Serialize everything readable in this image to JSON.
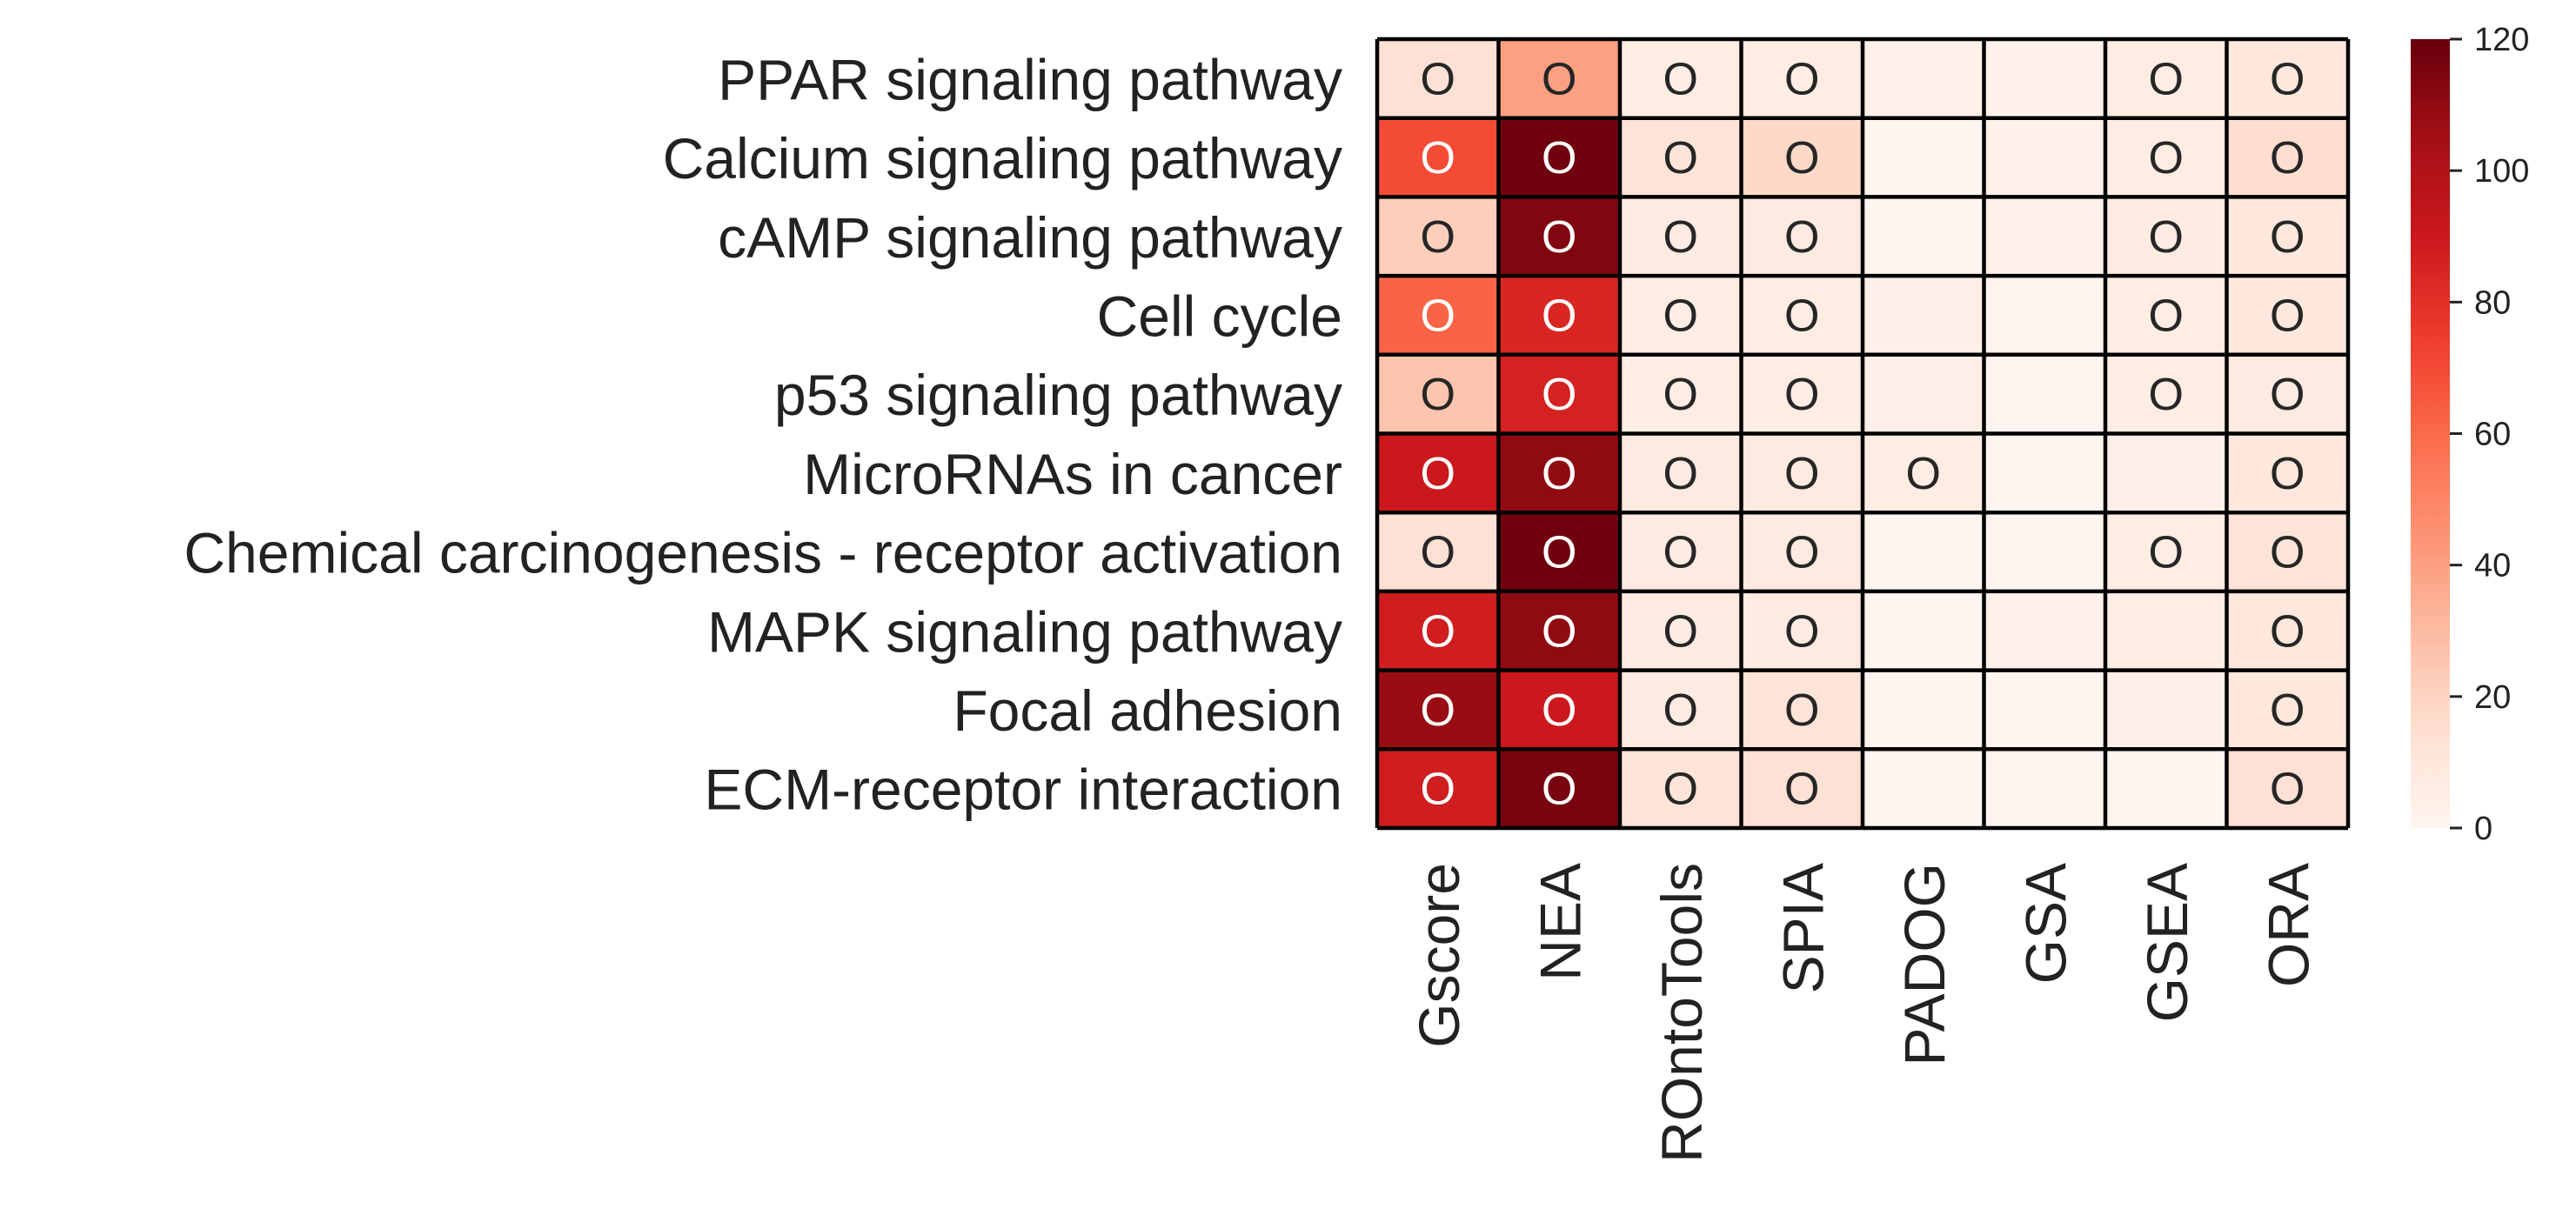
{
  "chart_data": {
    "type": "heatmap",
    "rows": [
      "PPAR signaling pathway",
      "Calcium signaling pathway",
      "cAMP signaling pathway",
      "Cell cycle",
      "p53 signaling pathway",
      "MicroRNAs in cancer",
      "Chemical carcinogenesis - receptor activation",
      "MAPK signaling pathway",
      "Focal adhesion",
      "ECM-receptor interaction"
    ],
    "columns": [
      "Gscore",
      "NEA",
      "ROntoTools",
      "SPIA",
      "PADOG",
      "GSA",
      "GSEA",
      "ORA"
    ],
    "values": [
      [
        14,
        40,
        6,
        6,
        3,
        2,
        6,
        10
      ],
      [
        70,
        118,
        12,
        18,
        0,
        3,
        6,
        16
      ],
      [
        22,
        114,
        7,
        8,
        0,
        3,
        7,
        10
      ],
      [
        62,
        84,
        6,
        6,
        4,
        0,
        6,
        9
      ],
      [
        26,
        86,
        6,
        6,
        4,
        0,
        6,
        8
      ],
      [
        90,
        110,
        8,
        8,
        6,
        0,
        4,
        10
      ],
      [
        14,
        118,
        8,
        8,
        0,
        0,
        6,
        12
      ],
      [
        88,
        110,
        7,
        7,
        0,
        3,
        5,
        10
      ],
      [
        108,
        90,
        8,
        12,
        0,
        0,
        4,
        10
      ],
      [
        88,
        116,
        12,
        14,
        0,
        0,
        0,
        14
      ]
    ],
    "markers": [
      [
        1,
        1,
        1,
        1,
        0,
        0,
        1,
        1
      ],
      [
        1,
        1,
        1,
        1,
        0,
        0,
        1,
        1
      ],
      [
        1,
        1,
        1,
        1,
        0,
        0,
        1,
        1
      ],
      [
        1,
        1,
        1,
        1,
        0,
        0,
        1,
        1
      ],
      [
        1,
        1,
        1,
        1,
        0,
        0,
        1,
        1
      ],
      [
        1,
        1,
        1,
        1,
        1,
        0,
        0,
        1
      ],
      [
        1,
        1,
        1,
        1,
        0,
        0,
        1,
        1
      ],
      [
        1,
        1,
        1,
        1,
        0,
        0,
        0,
        1
      ],
      [
        1,
        1,
        1,
        1,
        0,
        0,
        0,
        1
      ],
      [
        1,
        1,
        1,
        1,
        0,
        0,
        0,
        1
      ]
    ],
    "marker_text": "O",
    "colormap": "Reds",
    "vmin": 0,
    "vmax": 120,
    "colorbar_ticks": [
      0,
      20,
      40,
      60,
      80,
      100,
      120
    ],
    "colorbar_labels": [
      "0",
      "20",
      "40",
      "60",
      "80",
      "100",
      "120"
    ],
    "title": "",
    "xlabel": "",
    "ylabel": ""
  }
}
